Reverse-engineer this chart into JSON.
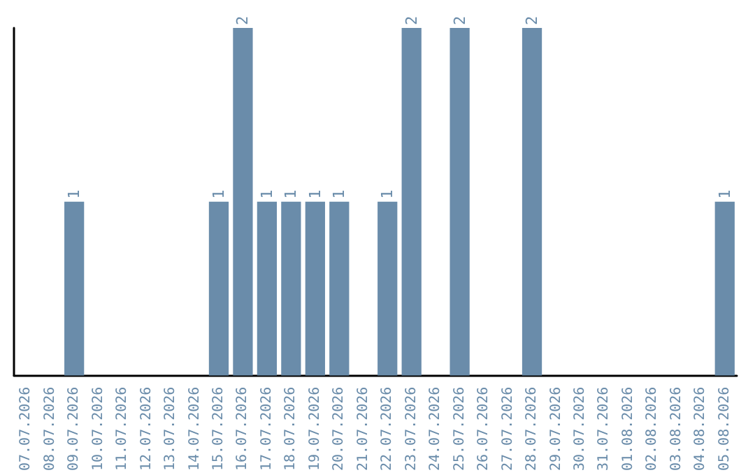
{
  "chart_data": {
    "type": "bar",
    "categories": [
      "07.07.2026",
      "08.07.2026",
      "09.07.2026",
      "10.07.2026",
      "11.07.2026",
      "12.07.2026",
      "13.07.2026",
      "14.07.2026",
      "15.07.2026",
      "16.07.2026",
      "17.07.2026",
      "18.07.2026",
      "19.07.2026",
      "20.07.2026",
      "21.07.2026",
      "22.07.2026",
      "23.07.2026",
      "24.07.2026",
      "25.07.2026",
      "26.07.2026",
      "27.07.2026",
      "28.07.2026",
      "29.07.2026",
      "30.07.2026",
      "31.07.2026",
      "01.08.2026",
      "02.08.2026",
      "03.08.2026",
      "04.08.2026",
      "05.08.2026"
    ],
    "values": [
      0,
      0,
      1,
      0,
      0,
      0,
      0,
      0,
      1,
      2,
      1,
      1,
      1,
      1,
      0,
      1,
      2,
      0,
      2,
      0,
      0,
      2,
      0,
      0,
      0,
      0,
      0,
      0,
      0,
      1
    ],
    "value_labels": [
      null,
      null,
      "1",
      null,
      null,
      null,
      null,
      null,
      "1",
      "2",
      "1",
      "1",
      "1",
      "1",
      null,
      "1",
      "2",
      null,
      "2",
      null,
      null,
      "2",
      null,
      null,
      null,
      null,
      null,
      null,
      null,
      "1"
    ],
    "color": "#6a8caa",
    "grid": false,
    "tick_labels": "x"
  }
}
